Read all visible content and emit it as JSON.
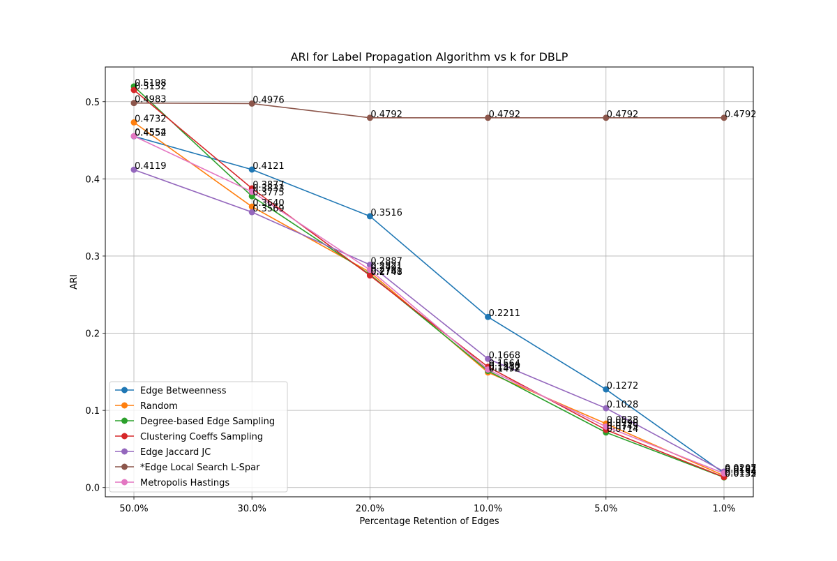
{
  "chart_data": {
    "type": "line",
    "title": "ARI for Label Propagation Algorithm vs k for DBLP",
    "xlabel": "Percentage Retention of Edges",
    "ylabel": "ARI",
    "categories": [
      "50.0%",
      "30.0%",
      "20.0%",
      "10.0%",
      "5.0%",
      "1.0%"
    ],
    "ylim": [
      -0.012,
      0.545
    ],
    "yticks": [
      0.0,
      0.1,
      0.2,
      0.3,
      0.4,
      0.5
    ],
    "ytick_labels": [
      "0.0",
      "0.1",
      "0.2",
      "0.3",
      "0.4",
      "0.5"
    ],
    "grid": true,
    "legend_position": "lower-left",
    "series": [
      {
        "name": "Edge Betweenness",
        "color": "#1f77b4",
        "values": [
          0.4552,
          0.4121,
          0.3516,
          0.2211,
          0.1272,
          0.0187
        ],
        "labels": [
          "0.4552",
          "0.4121",
          "0.3516",
          "0.2211",
          "0.1272",
          "0.0187"
        ]
      },
      {
        "name": "Random",
        "color": "#ff7f0e",
        "values": [
          0.4732,
          0.364,
          0.2791,
          0.1492,
          0.0828,
          0.0154
        ],
        "labels": [
          "0.4732",
          "0.3640",
          "0.2791",
          "0.1492",
          "0.0828",
          "0.0154"
        ]
      },
      {
        "name": "Degree-based Edge Sampling",
        "color": "#2ca02c",
        "values": [
          0.5198,
          0.3775,
          0.2761,
          0.1512,
          0.0714,
          0.0132
        ],
        "labels": [
          "0.5198",
          "0.3775",
          "0.2761",
          "0.1512",
          "0.0714",
          "0.0132"
        ]
      },
      {
        "name": "Clustering Coeffs Sampling",
        "color": "#d62728",
        "values": [
          0.5152,
          0.3877,
          0.2748,
          0.1564,
          0.0749,
          0.0135
        ],
        "labels": [
          "0.5152",
          "0.3877",
          "0.2748",
          "0.1564",
          "0.0749",
          "0.0135"
        ]
      },
      {
        "name": "Edge Jaccard JC",
        "color": "#9467bd",
        "values": [
          0.4119,
          0.3569,
          0.2887,
          0.1668,
          0.1028,
          0.0207
        ],
        "labels": [
          "0.4119",
          "0.3569",
          "0.2887",
          "0.1668",
          "0.1028",
          "0.0207"
        ]
      },
      {
        "name": "*Edge Local Search L-Spar",
        "color": "#8c564b",
        "values": [
          0.4983,
          0.4976,
          0.4792,
          0.4792,
          0.4792,
          0.4792
        ],
        "labels": [
          "0.4983",
          "0.4976",
          "0.4792",
          "0.4792",
          "0.4792",
          "0.4792"
        ]
      },
      {
        "name": "Metropolis Hastings",
        "color": "#e377c2",
        "values": [
          0.4554,
          0.3833,
          0.2821,
          0.153,
          0.079,
          0.0183
        ],
        "labels": [
          "0.4554",
          "0.3833",
          "0.2821",
          "0.1530",
          "0.0790",
          "0.0183"
        ]
      }
    ]
  }
}
